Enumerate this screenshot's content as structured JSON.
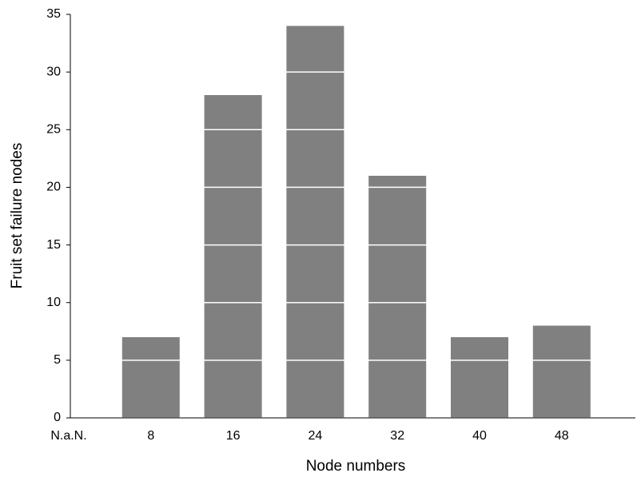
{
  "chart_data": {
    "type": "bar",
    "x_label": "Node numbers",
    "y_label": "Fruit set failure nodes",
    "categories": [
      "N.a.N.",
      "8",
      "16",
      "24",
      "32",
      "40",
      "48"
    ],
    "values": [
      null,
      7,
      28,
      34,
      21,
      7,
      8
    ],
    "color": "#808080",
    "ylim": [
      0,
      35
    ],
    "yticks": [
      0,
      5,
      10,
      15,
      20,
      25,
      30,
      35
    ],
    "grid": true,
    "grid_color": "#ffffff"
  }
}
